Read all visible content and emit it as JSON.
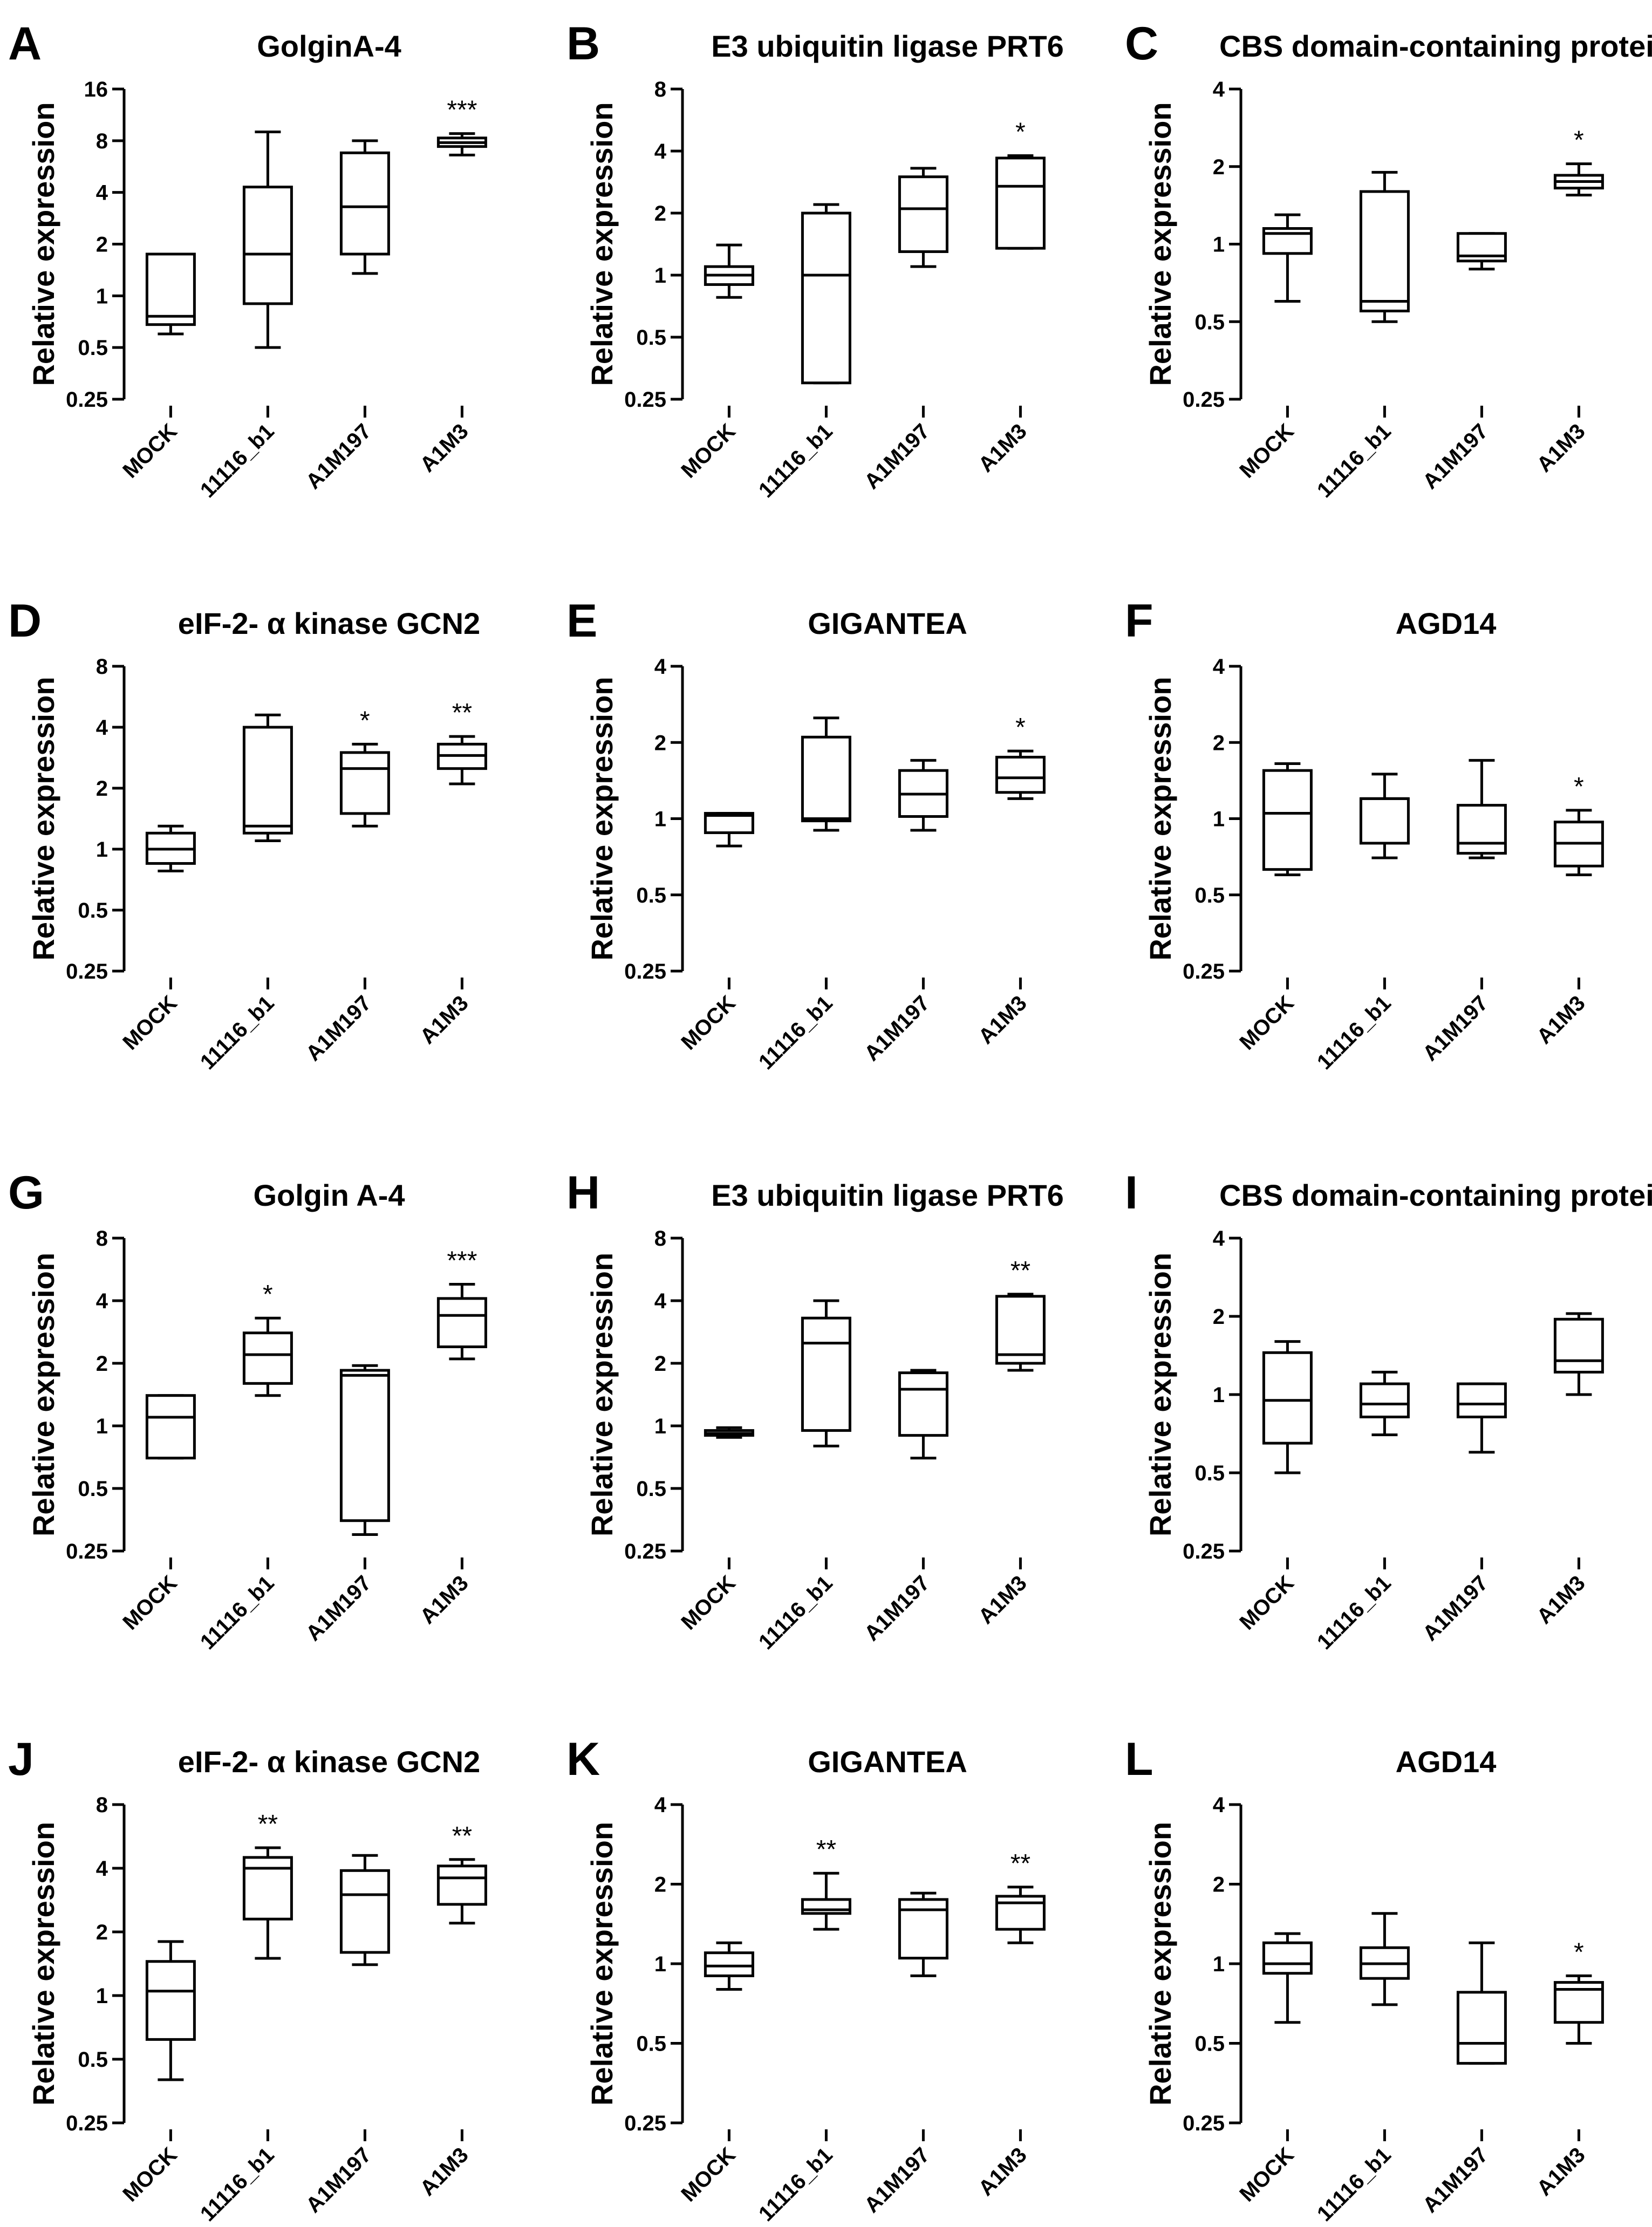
{
  "chart_data": [
    {
      "type": "box",
      "panel": "A",
      "title": "GolginA-4",
      "ylabel": "Relative expression",
      "yscale": "log2",
      "ylim": [
        0.25,
        16
      ],
      "yticks": [
        "0.25",
        "0.5",
        "1",
        "2",
        "4",
        "8",
        "16"
      ],
      "categories": [
        "MOCK",
        "11116_b1",
        "A1M197",
        "A1M3"
      ],
      "boxes": [
        {
          "min": 0.6,
          "q1": 0.68,
          "median": 0.76,
          "q3": 1.75,
          "max": 1.75,
          "sig": ""
        },
        {
          "min": 0.5,
          "q1": 0.9,
          "median": 1.75,
          "q3": 4.3,
          "max": 9.0,
          "sig": ""
        },
        {
          "min": 1.35,
          "q1": 1.75,
          "median": 3.3,
          "q3": 6.8,
          "max": 8.0,
          "sig": ""
        },
        {
          "min": 6.6,
          "q1": 7.4,
          "median": 7.8,
          "q3": 8.3,
          "max": 8.8,
          "sig": "***"
        }
      ]
    },
    {
      "type": "box",
      "panel": "B",
      "title": "E3 ubiquitin ligase PRT6",
      "ylabel": "Relative expression",
      "yscale": "log2",
      "ylim": [
        0.25,
        8
      ],
      "yticks": [
        "0.25",
        "0.5",
        "1",
        "2",
        "4",
        "8"
      ],
      "categories": [
        "MOCK",
        "11116_b1",
        "A1M197",
        "A1M3"
      ],
      "boxes": [
        {
          "min": 0.78,
          "q1": 0.9,
          "median": 1.0,
          "q3": 1.1,
          "max": 1.4,
          "sig": ""
        },
        {
          "min": 0.3,
          "q1": 0.3,
          "median": 1.0,
          "q3": 2.0,
          "max": 2.2,
          "sig": ""
        },
        {
          "min": 1.1,
          "q1": 1.3,
          "median": 2.1,
          "q3": 3.0,
          "max": 3.3,
          "sig": ""
        },
        {
          "min": 1.35,
          "q1": 1.35,
          "median": 2.7,
          "q3": 3.7,
          "max": 3.8,
          "sig": "*"
        }
      ]
    },
    {
      "type": "box",
      "panel": "C",
      "title": "CBS domain-containing protein",
      "ylabel": "Relative expression",
      "yscale": "log2",
      "ylim": [
        0.25,
        4
      ],
      "yticks": [
        "0.25",
        "0.5",
        "1",
        "2",
        "4"
      ],
      "categories": [
        "MOCK",
        "11116_b1",
        "A1M197",
        "A1M3"
      ],
      "boxes": [
        {
          "min": 0.6,
          "q1": 0.92,
          "median": 1.1,
          "q3": 1.15,
          "max": 1.3,
          "sig": ""
        },
        {
          "min": 0.5,
          "q1": 0.55,
          "median": 0.6,
          "q3": 1.6,
          "max": 1.9,
          "sig": ""
        },
        {
          "min": 0.8,
          "q1": 0.86,
          "median": 0.9,
          "q3": 1.1,
          "max": 1.1,
          "sig": ""
        },
        {
          "min": 1.55,
          "q1": 1.65,
          "median": 1.75,
          "q3": 1.85,
          "max": 2.05,
          "sig": "*"
        }
      ]
    },
    {
      "type": "box",
      "panel": "D",
      "title": "eIF-2- α kinase GCN2",
      "ylabel": "Relative expression",
      "yscale": "log2",
      "ylim": [
        0.25,
        8
      ],
      "yticks": [
        "0.25",
        "0.5",
        "1",
        "2",
        "4",
        "8"
      ],
      "categories": [
        "MOCK",
        "11116_b1",
        "A1M197",
        "A1M3"
      ],
      "boxes": [
        {
          "min": 0.78,
          "q1": 0.85,
          "median": 1.0,
          "q3": 1.2,
          "max": 1.3,
          "sig": ""
        },
        {
          "min": 1.1,
          "q1": 1.2,
          "median": 1.3,
          "q3": 4.0,
          "max": 4.6,
          "sig": ""
        },
        {
          "min": 1.3,
          "q1": 1.5,
          "median": 2.5,
          "q3": 3.0,
          "max": 3.3,
          "sig": "*"
        },
        {
          "min": 2.1,
          "q1": 2.5,
          "median": 2.9,
          "q3": 3.3,
          "max": 3.6,
          "sig": "**"
        }
      ]
    },
    {
      "type": "box",
      "panel": "E",
      "title": "GIGANTEA",
      "ylabel": "Relative expression",
      "yscale": "log2",
      "ylim": [
        0.25,
        4
      ],
      "yticks": [
        "0.25",
        "0.5",
        "1",
        "2",
        "4"
      ],
      "categories": [
        "MOCK",
        "11116_b1",
        "A1M197",
        "A1M3"
      ],
      "boxes": [
        {
          "min": 0.78,
          "q1": 0.88,
          "median": 1.03,
          "q3": 1.05,
          "max": 1.05,
          "sig": ""
        },
        {
          "min": 0.9,
          "q1": 0.98,
          "median": 1.0,
          "q3": 2.1,
          "max": 2.5,
          "sig": ""
        },
        {
          "min": 0.9,
          "q1": 1.02,
          "median": 1.25,
          "q3": 1.55,
          "max": 1.7,
          "sig": ""
        },
        {
          "min": 1.2,
          "q1": 1.27,
          "median": 1.45,
          "q3": 1.75,
          "max": 1.85,
          "sig": "*"
        }
      ]
    },
    {
      "type": "box",
      "panel": "F",
      "title": "AGD14",
      "ylabel": "Relative expression",
      "yscale": "log2",
      "ylim": [
        0.25,
        4
      ],
      "yticks": [
        "0.25",
        "0.5",
        "1",
        "2",
        "4"
      ],
      "categories": [
        "MOCK",
        "11116_b1",
        "A1M197",
        "A1M3"
      ],
      "boxes": [
        {
          "min": 0.6,
          "q1": 0.63,
          "median": 1.05,
          "q3": 1.55,
          "max": 1.65,
          "sig": ""
        },
        {
          "min": 0.7,
          "q1": 0.8,
          "median": 1.2,
          "q3": 1.2,
          "max": 1.5,
          "sig": ""
        },
        {
          "min": 0.7,
          "q1": 0.73,
          "median": 0.8,
          "q3": 1.13,
          "max": 1.7,
          "sig": ""
        },
        {
          "min": 0.6,
          "q1": 0.65,
          "median": 0.8,
          "q3": 0.97,
          "max": 1.08,
          "sig": "*"
        }
      ]
    },
    {
      "type": "box",
      "panel": "G",
      "title": "Golgin A-4",
      "ylabel": "Relative expression",
      "yscale": "log2",
      "ylim": [
        0.25,
        8
      ],
      "yticks": [
        "0.25",
        "0.5",
        "1",
        "2",
        "4",
        "8"
      ],
      "categories": [
        "MOCK",
        "11116_b1",
        "A1M197",
        "A1M3"
      ],
      "boxes": [
        {
          "min": 0.7,
          "q1": 0.7,
          "median": 1.1,
          "q3": 1.4,
          "max": 1.4,
          "sig": ""
        },
        {
          "min": 1.4,
          "q1": 1.6,
          "median": 2.2,
          "q3": 2.8,
          "max": 3.3,
          "sig": "*"
        },
        {
          "min": 0.3,
          "q1": 0.35,
          "median": 1.75,
          "q3": 1.85,
          "max": 1.95,
          "sig": ""
        },
        {
          "min": 2.1,
          "q1": 2.4,
          "median": 3.4,
          "q3": 4.1,
          "max": 4.8,
          "sig": "***"
        }
      ]
    },
    {
      "type": "box",
      "panel": "H",
      "title": "E3 ubiquitin ligase PRT6",
      "ylabel": "Relative expression",
      "yscale": "log2",
      "ylim": [
        0.25,
        8
      ],
      "yticks": [
        "0.25",
        "0.5",
        "1",
        "2",
        "4",
        "8"
      ],
      "categories": [
        "MOCK",
        "11116_b1",
        "A1M197",
        "A1M3"
      ],
      "boxes": [
        {
          "min": 0.88,
          "q1": 0.9,
          "median": 0.92,
          "q3": 0.95,
          "max": 0.98,
          "sig": ""
        },
        {
          "min": 0.8,
          "q1": 0.95,
          "median": 2.5,
          "q3": 3.3,
          "max": 4.0,
          "sig": ""
        },
        {
          "min": 0.7,
          "q1": 0.9,
          "median": 1.5,
          "q3": 1.8,
          "max": 1.85,
          "sig": ""
        },
        {
          "min": 1.85,
          "q1": 2.0,
          "median": 2.2,
          "q3": 4.2,
          "max": 4.3,
          "sig": "**"
        }
      ]
    },
    {
      "type": "box",
      "panel": "I",
      "title": "CBS domain-containing protein",
      "ylabel": "Relative expression",
      "yscale": "log2",
      "ylim": [
        0.25,
        4
      ],
      "yticks": [
        "0.25",
        "0.5",
        "1",
        "2",
        "4"
      ],
      "categories": [
        "MOCK",
        "11116_b1",
        "A1M197",
        "A1M3"
      ],
      "boxes": [
        {
          "min": 0.5,
          "q1": 0.65,
          "median": 0.95,
          "q3": 1.45,
          "max": 1.6,
          "sig": ""
        },
        {
          "min": 0.7,
          "q1": 0.82,
          "median": 0.92,
          "q3": 1.1,
          "max": 1.22,
          "sig": ""
        },
        {
          "min": 0.6,
          "q1": 0.82,
          "median": 0.92,
          "q3": 1.1,
          "max": 1.1,
          "sig": ""
        },
        {
          "min": 1.0,
          "q1": 1.22,
          "median": 1.35,
          "q3": 1.95,
          "max": 2.05,
          "sig": ""
        }
      ]
    },
    {
      "type": "box",
      "panel": "J",
      "title": "eIF-2- α kinase GCN2",
      "ylabel": "Relative expression",
      "yscale": "log2",
      "ylim": [
        0.25,
        8
      ],
      "yticks": [
        "0.25",
        "0.5",
        "1",
        "2",
        "4",
        "8"
      ],
      "categories": [
        "MOCK",
        "11116_b1",
        "A1M197",
        "A1M3"
      ],
      "boxes": [
        {
          "min": 0.4,
          "q1": 0.62,
          "median": 1.05,
          "q3": 1.45,
          "max": 1.8,
          "sig": ""
        },
        {
          "min": 1.5,
          "q1": 2.3,
          "median": 4.0,
          "q3": 4.5,
          "max": 5.0,
          "sig": "**"
        },
        {
          "min": 1.4,
          "q1": 1.6,
          "median": 3.0,
          "q3": 3.9,
          "max": 4.6,
          "sig": ""
        },
        {
          "min": 2.2,
          "q1": 2.7,
          "median": 3.6,
          "q3": 4.1,
          "max": 4.4,
          "sig": "**"
        }
      ]
    },
    {
      "type": "box",
      "panel": "K",
      "title": "GIGANTEA",
      "ylabel": "Relative expression",
      "yscale": "log2",
      "ylim": [
        0.25,
        4
      ],
      "yticks": [
        "0.25",
        "0.5",
        "1",
        "2",
        "4"
      ],
      "categories": [
        "MOCK",
        "11116_b1",
        "A1M197",
        "A1M3"
      ],
      "boxes": [
        {
          "min": 0.8,
          "q1": 0.9,
          "median": 0.98,
          "q3": 1.1,
          "max": 1.2,
          "sig": ""
        },
        {
          "min": 1.35,
          "q1": 1.55,
          "median": 1.6,
          "q3": 1.75,
          "max": 2.2,
          "sig": "**"
        },
        {
          "min": 0.9,
          "q1": 1.05,
          "median": 1.6,
          "q3": 1.75,
          "max": 1.85,
          "sig": ""
        },
        {
          "min": 1.2,
          "q1": 1.35,
          "median": 1.7,
          "q3": 1.8,
          "max": 1.95,
          "sig": "**"
        }
      ]
    },
    {
      "type": "box",
      "panel": "L",
      "title": "AGD14",
      "ylabel": "Relative expression",
      "yscale": "log2",
      "ylim": [
        0.25,
        4
      ],
      "yticks": [
        "0.25",
        "0.5",
        "1",
        "2",
        "4"
      ],
      "categories": [
        "MOCK",
        "11116_b1",
        "A1M197",
        "A1M3"
      ],
      "boxes": [
        {
          "min": 0.6,
          "q1": 0.92,
          "median": 1.0,
          "q3": 1.2,
          "max": 1.3,
          "sig": ""
        },
        {
          "min": 0.7,
          "q1": 0.88,
          "median": 1.0,
          "q3": 1.15,
          "max": 1.55,
          "sig": ""
        },
        {
          "min": 0.42,
          "q1": 0.42,
          "median": 0.5,
          "q3": 0.78,
          "max": 1.2,
          "sig": ""
        },
        {
          "min": 0.5,
          "q1": 0.6,
          "median": 0.8,
          "q3": 0.85,
          "max": 0.9,
          "sig": "*"
        }
      ]
    }
  ]
}
